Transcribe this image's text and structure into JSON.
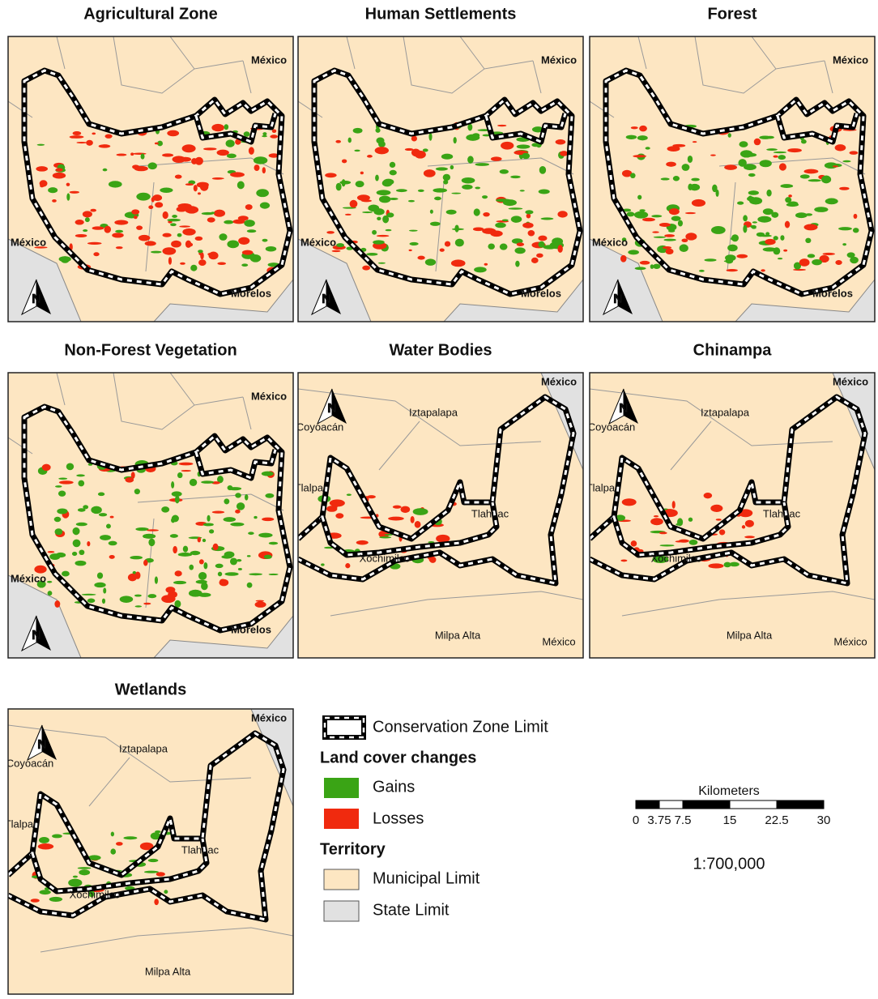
{
  "panels": [
    {
      "title": "Agricultural Zone",
      "view": "region",
      "labels": [
        "México",
        "México",
        "Morelos"
      ]
    },
    {
      "title": "Human Settlements",
      "view": "region",
      "labels": [
        "México",
        "México",
        "Morelos"
      ]
    },
    {
      "title": "Forest",
      "view": "region",
      "labels": [
        "México",
        "México",
        "Morelos"
      ]
    },
    {
      "title": "Non-Forest Vegetation",
      "view": "region",
      "labels": [
        "México",
        "México",
        "Morelos"
      ]
    },
    {
      "title": "Water Bodies",
      "view": "zoom",
      "labels": [
        "México",
        "Iztapalapa",
        "Coyoacán",
        "Tlalpan",
        "Tlahuac",
        "Xochimilco",
        "Milpa Alta",
        "México"
      ]
    },
    {
      "title": "Chinampa",
      "view": "zoom",
      "labels": [
        "México",
        "Iztapalapa",
        "Coyoacán",
        "Tlalpan",
        "Tlahuac",
        "Xochimilco",
        "Milpa Alta",
        "México"
      ]
    },
    {
      "title": "Wetlands",
      "view": "zoom",
      "labels": [
        "México",
        "Iztapalapa",
        "Coyoacán",
        "Tlalpan",
        "Tlahuac",
        "Xochimilco",
        "Milpa Alta"
      ]
    }
  ],
  "north_label": "N",
  "legend": {
    "boundary": "Conservation Zone Limit",
    "changes_title": "Land cover changes",
    "gains": "Gains",
    "losses": "Losses",
    "territory_title": "Territory",
    "municipal": "Municipal Limit",
    "state": "State Limit"
  },
  "scale_bar": {
    "unit": "Kilometers",
    "ticks": [
      0,
      3.75,
      7.5,
      15,
      22.5,
      30
    ],
    "ratio": "1:700,000"
  }
}
